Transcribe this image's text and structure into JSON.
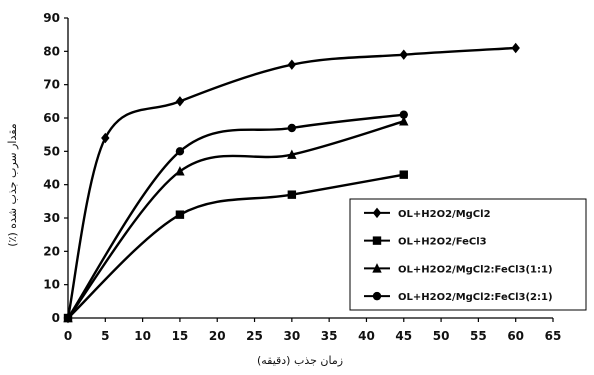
{
  "chart_data": {
    "type": "line",
    "xlabel": "زمان جذب (دقیقه)",
    "ylabel": "مقدار سرب جذب شده (٪)",
    "xlim": [
      0,
      65
    ],
    "ylim": [
      0,
      90
    ],
    "xticks": [
      0,
      5,
      10,
      15,
      20,
      25,
      30,
      35,
      40,
      45,
      50,
      55,
      60,
      65
    ],
    "yticks": [
      0,
      10,
      20,
      30,
      40,
      50,
      60,
      70,
      80,
      90
    ],
    "legend_position": "bottom-right",
    "series": [
      {
        "name": "OL+H2O2/MgCl2",
        "marker": "diamond",
        "x": [
          0,
          5,
          15,
          30,
          45,
          60
        ],
        "y": [
          0,
          54,
          65,
          76,
          79,
          81
        ]
      },
      {
        "name": "OL+H2O2/FeCl3",
        "marker": "square",
        "x": [
          0,
          15,
          30,
          45
        ],
        "y": [
          0,
          31,
          37,
          43
        ]
      },
      {
        "name": "OL+H2O2/MgCl2:FeCl3(1:1)",
        "marker": "triangle",
        "x": [
          0,
          15,
          30,
          45
        ],
        "y": [
          0,
          44,
          49,
          59
        ]
      },
      {
        "name": "OL+H2O2/MgCl2:FeCl3(2:1)",
        "marker": "circle",
        "x": [
          0,
          15,
          30,
          45
        ],
        "y": [
          0,
          50,
          57,
          61
        ]
      }
    ]
  }
}
